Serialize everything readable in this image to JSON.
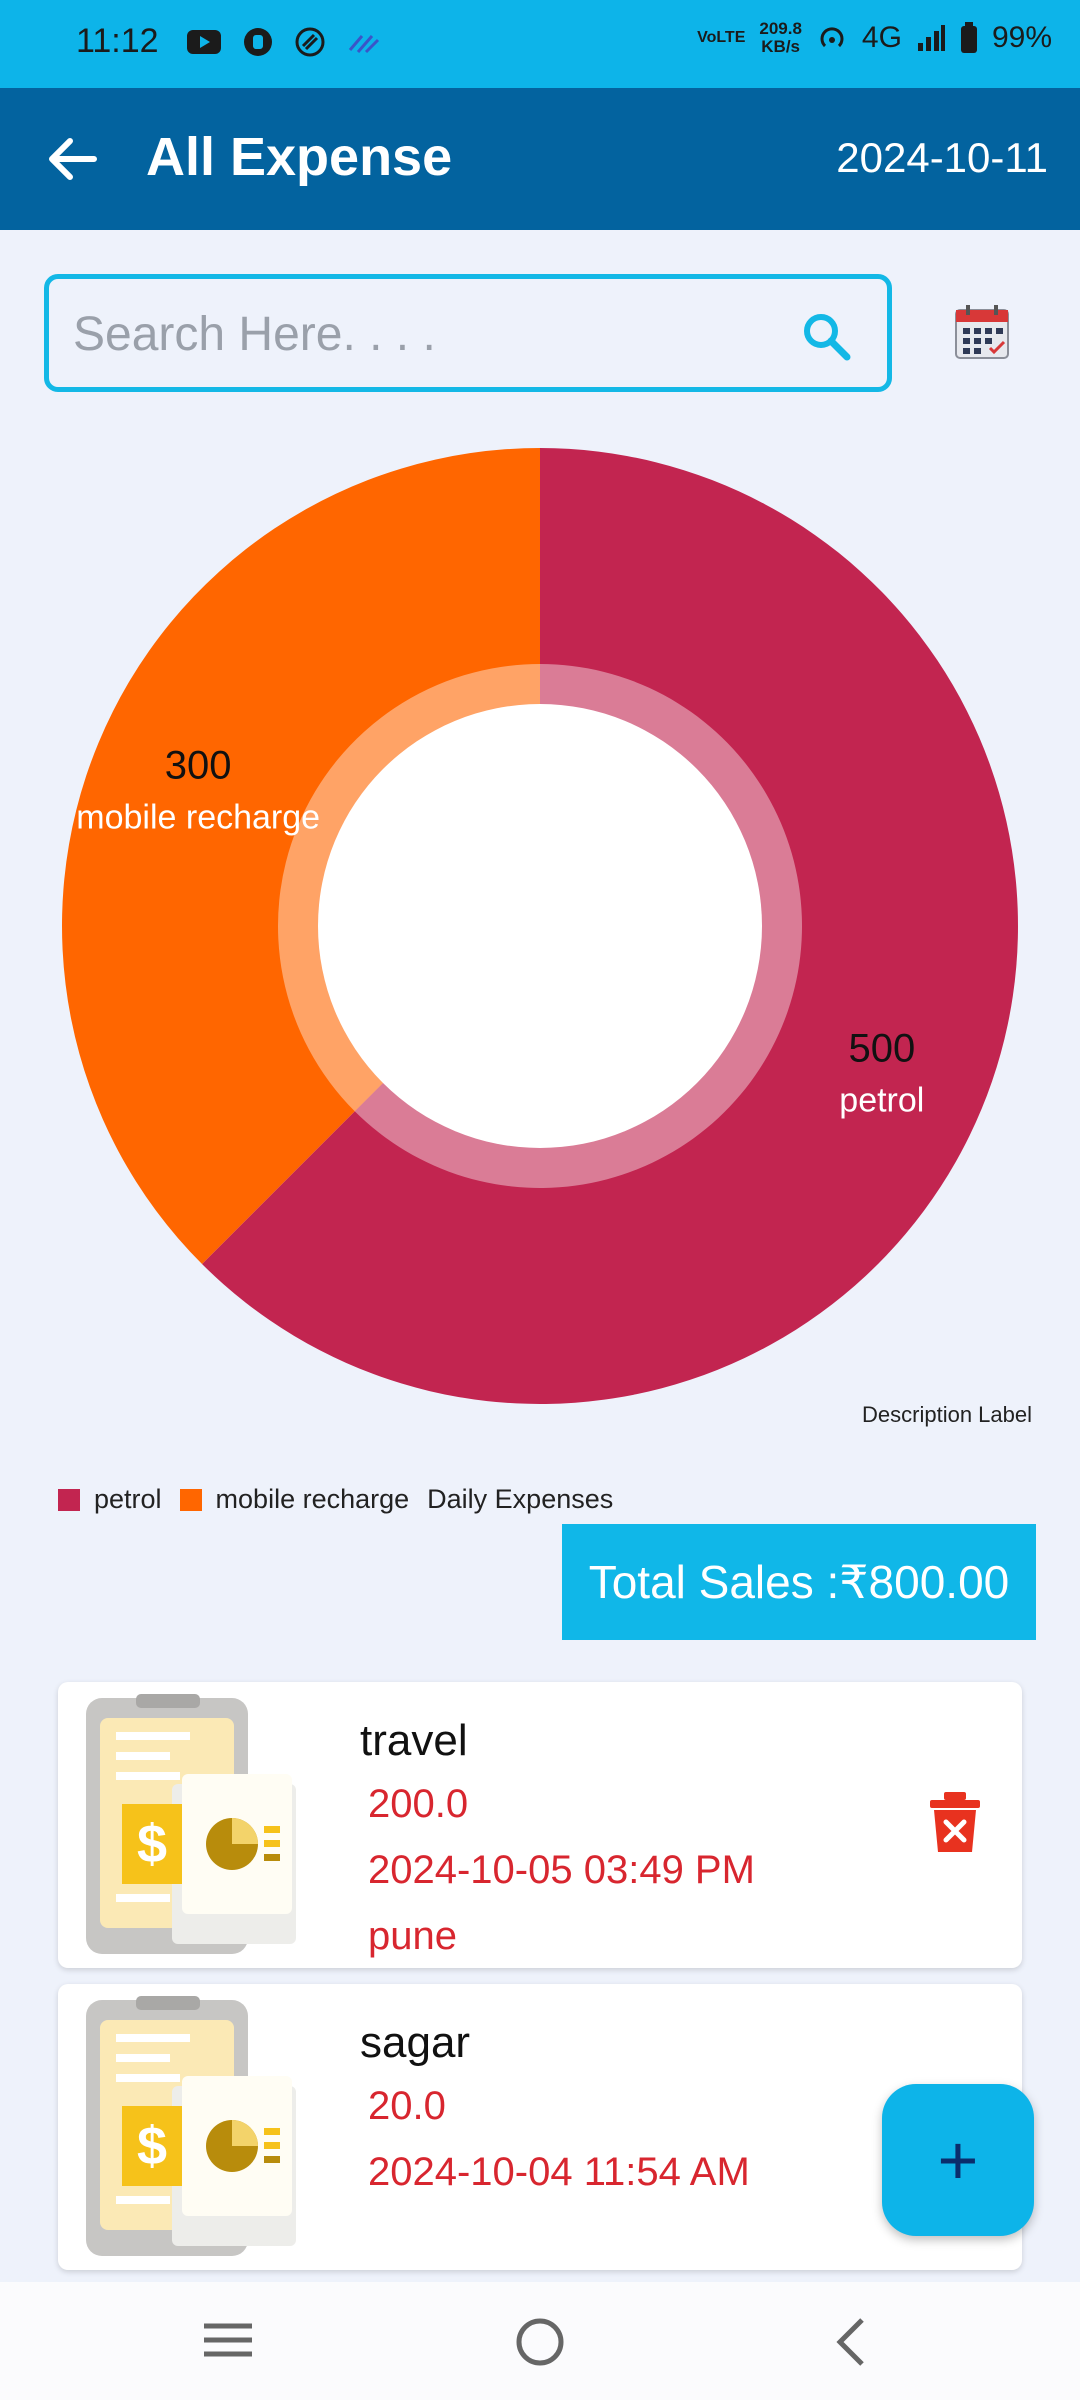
{
  "status_bar": {
    "time": "11:12",
    "net_speed_value": "209.8",
    "net_speed_unit": "KB/s",
    "volte": "VoLTE",
    "network": "4G",
    "battery": "99%"
  },
  "app_bar": {
    "title": "All Expense",
    "date": "2024-10-11"
  },
  "search": {
    "placeholder": "Search Here. . . ."
  },
  "chart_data": {
    "type": "pie",
    "style": "donut",
    "title": "",
    "description_label": "Description Label",
    "categories": [
      "petrol",
      "mobile recharge"
    ],
    "values": [
      500,
      300
    ],
    "colors": [
      "#c22550",
      "#ff6600"
    ],
    "legend": {
      "placement": "bottom-left",
      "entries": [
        "petrol",
        "mobile recharge"
      ],
      "dataset_label": "Daily Expenses"
    }
  },
  "total": {
    "label": "Total Sales :₹800.00"
  },
  "expenses": [
    {
      "name": "travel",
      "amount": "200.0",
      "datetime": "2024-10-05 03:49 PM",
      "place": "pune"
    },
    {
      "name": "sagar",
      "amount": "20.0",
      "datetime": "2024-10-04 11:54 AM",
      "place": ""
    }
  ],
  "fab": {
    "label": "+"
  },
  "icons": {
    "back": "arrow-left-icon",
    "search": "search-icon",
    "calendar": "calendar-icon",
    "delete": "trash-icon",
    "fab": "plus-icon",
    "nav": [
      "menu-icon",
      "home-icon",
      "back-nav-icon"
    ]
  }
}
